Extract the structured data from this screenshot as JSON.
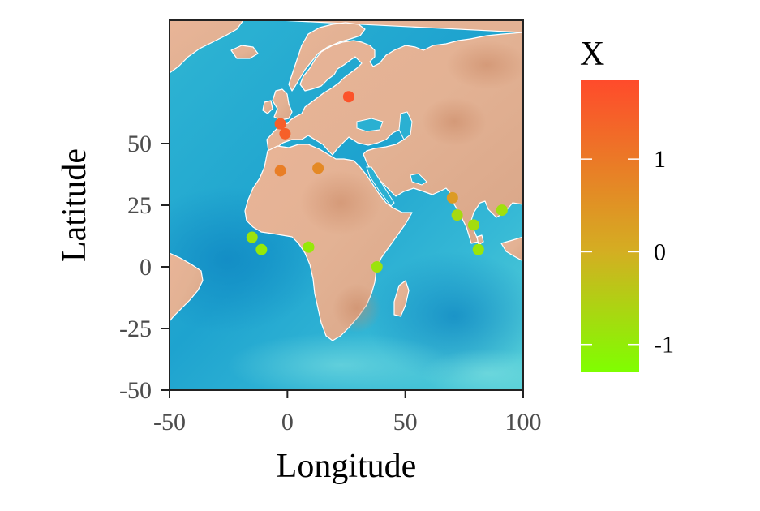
{
  "chart_data": {
    "type": "scatter",
    "title": "",
    "xlabel": "Longitude",
    "ylabel": "Latitude",
    "xlim": [
      -50,
      100
    ],
    "ylim": [
      -50,
      100
    ],
    "x_ticks": [
      -50,
      0,
      50,
      100
    ],
    "x_tick_labels": [
      "-50",
      "0",
      "50",
      "100"
    ],
    "y_ticks": [
      -50,
      -25,
      0,
      25,
      50
    ],
    "y_tick_labels": [
      "-50",
      "-25",
      "0",
      "25",
      "50"
    ],
    "grid": false,
    "background": "watercolor world map",
    "legend": {
      "title": "X",
      "position": "right",
      "type": "continuous colorbar",
      "range": [
        -1.3,
        1.85
      ],
      "ticks": [
        1,
        0,
        -1
      ],
      "tick_labels": [
        "1",
        "0",
        "-1"
      ],
      "colors": {
        "low": "#7fff00",
        "mid": "#d4ae22",
        "high": "#ff4b2b"
      }
    },
    "points": [
      {
        "lon": 26,
        "lat": 69,
        "value": 1.7
      },
      {
        "lon": -3,
        "lat": 58,
        "value": 1.5
      },
      {
        "lon": -1,
        "lat": 54,
        "value": 1.45
      },
      {
        "lon": -3,
        "lat": 39,
        "value": 0.9
      },
      {
        "lon": 13,
        "lat": 40,
        "value": 0.7
      },
      {
        "lon": 70,
        "lat": 28,
        "value": 0.35
      },
      {
        "lon": 72,
        "lat": 21,
        "value": -0.7
      },
      {
        "lon": 79,
        "lat": 17,
        "value": -0.75
      },
      {
        "lon": 91,
        "lat": 23,
        "value": -0.8
      },
      {
        "lon": 81,
        "lat": 7,
        "value": -0.9
      },
      {
        "lon": -15,
        "lat": 12,
        "value": -0.85
      },
      {
        "lon": -11,
        "lat": 7,
        "value": -0.95
      },
      {
        "lon": 9,
        "lat": 8,
        "value": -0.95
      },
      {
        "lon": 38,
        "lat": 0,
        "value": -0.85
      }
    ]
  }
}
